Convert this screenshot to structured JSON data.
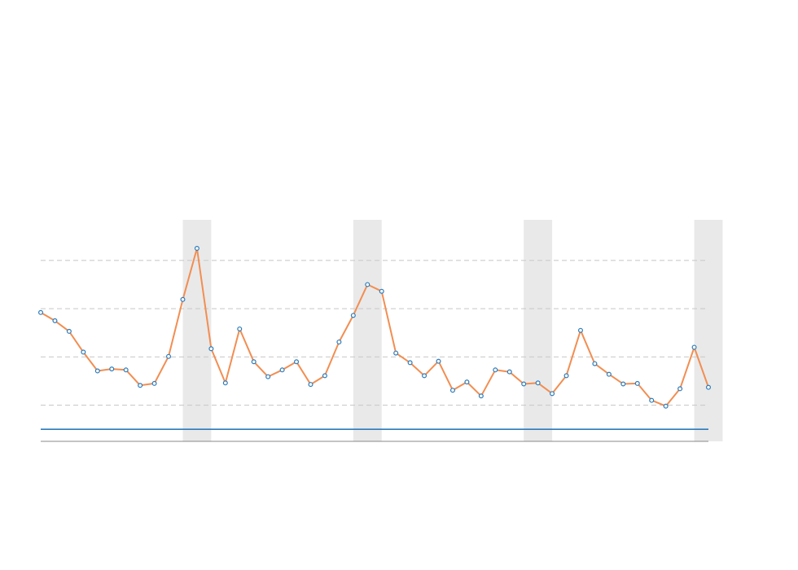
{
  "chart_data": {
    "type": "line",
    "title": "",
    "xlabel": "",
    "ylabel": "",
    "grid": true,
    "ylim": [
      0,
      40
    ],
    "gridlines": [
      7.5,
      17.5,
      27.5,
      37.5
    ],
    "baseline": 2.5,
    "shaded_bands": [
      [
        10,
        12
      ],
      [
        22,
        24
      ],
      [
        34,
        36
      ],
      [
        46,
        48
      ]
    ],
    "x": [
      0,
      1,
      2,
      3,
      4,
      5,
      6,
      7,
      8,
      9,
      10,
      11,
      12,
      13,
      14,
      15,
      16,
      17,
      18,
      19,
      20,
      21,
      22,
      23,
      24,
      25,
      26,
      27,
      28,
      29,
      30,
      31,
      32,
      33,
      34,
      35,
      36,
      37,
      38,
      39,
      40,
      41,
      42,
      43,
      44,
      45,
      46,
      47
    ],
    "series": [
      {
        "values": [
          26.7,
          25.0,
          22.8,
          18.5,
          14.6,
          15.0,
          14.8,
          11.6,
          12.0,
          17.6,
          29.4,
          40.0,
          19.2,
          12.1,
          23.3,
          16.5,
          13.4,
          14.8,
          16.5,
          11.8,
          13.6,
          20.6,
          26.1,
          32.5,
          31.1,
          18.3,
          16.3,
          13.6,
          16.6,
          10.6,
          12.3,
          9.4,
          14.8,
          14.4,
          11.9,
          12.1,
          9.9,
          13.6,
          23.0,
          16.1,
          13.9,
          11.9,
          12.0,
          8.5,
          7.3,
          10.9,
          19.5,
          11.2
        ],
        "color": "#f28e52"
      }
    ],
    "colors": {
      "line": "#f28e52",
      "marker_edge": "#2b7bba",
      "marker_fill": "#ffffff",
      "baseline": "#2b7bba",
      "grid": "#cccccc",
      "band": "#e9e9e9",
      "axis": "#888888"
    }
  }
}
